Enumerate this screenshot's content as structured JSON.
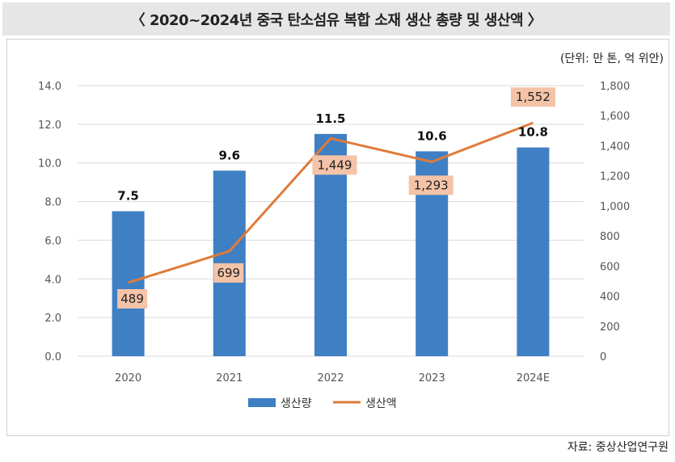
{
  "header": {
    "title": "〈 2020~2024년 중국 탄소섬유 복합 소재 생산 총량 및 생산액 〉"
  },
  "unit_note": "(단위: 만 톤, 억 위안)",
  "source": "자료: 중상산업연구원",
  "colors": {
    "bar": "#3f7fc4",
    "line": "#e07b39",
    "label_bg": "#f4c3a8",
    "grid": "#d9d9d9"
  },
  "chart_data": {
    "type": "bar+line",
    "title": "2020~2024년 중국 탄소섬유 복합 소재 생산 총량 및 생산액",
    "categories": [
      "2020",
      "2021",
      "2022",
      "2023",
      "2024E"
    ],
    "series": [
      {
        "name": "생산량",
        "type": "bar",
        "axis": "left",
        "values": [
          7.5,
          9.6,
          11.5,
          10.6,
          10.8
        ],
        "labels": [
          "7.5",
          "9.6",
          "11.5",
          "10.6",
          "10.8"
        ]
      },
      {
        "name": "생산액",
        "type": "line",
        "axis": "right",
        "values": [
          489,
          699,
          1449,
          1293,
          1552
        ],
        "labels": [
          "489",
          "699",
          "1,449",
          "1,293",
          "1,552"
        ]
      }
    ],
    "y_left": {
      "min": 0,
      "max": 14,
      "ticks": [
        "0.0",
        "2.0",
        "4.0",
        "6.0",
        "8.0",
        "10.0",
        "12.0",
        "14.0"
      ]
    },
    "y_right": {
      "min": 0,
      "max": 1800,
      "ticks": [
        "0",
        "200",
        "400",
        "600",
        "800",
        "1,000",
        "1,200",
        "1,400",
        "1,600",
        "1,800"
      ]
    },
    "grid": true,
    "legend": "bottom-center"
  }
}
